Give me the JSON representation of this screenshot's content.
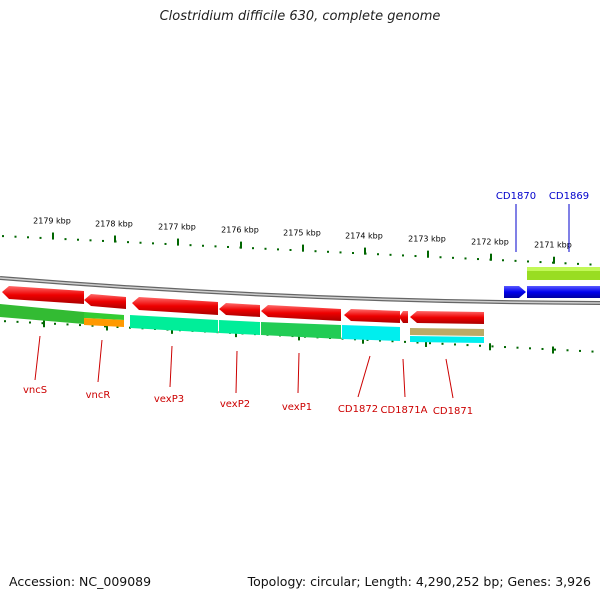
{
  "title": "Clostridium difficile 630, complete genome",
  "footer": {
    "accession_label": "Accession:",
    "accession": "NC_009089",
    "topology_label": "Topology:",
    "topology": "circular",
    "length_label": "Length:",
    "length": "4,290,252 bp",
    "genes_label": "Genes:",
    "genes": "3,926"
  },
  "colors": {
    "forward_label": "#0000cc",
    "reverse_label": "#cc0000",
    "tick": "#006600",
    "backbone": "#777777"
  },
  "scale": {
    "unit": "kbp",
    "labels": [
      "2179 kbp",
      "2178 kbp",
      "2177 kbp",
      "2176 kbp",
      "2175 kbp",
      "2174 kbp",
      "2173 kbp",
      "2172 kbp",
      "2171 kbp"
    ]
  },
  "forward_genes": [
    {
      "name": "CD1870",
      "color": "#0000ee"
    },
    {
      "name": "CD1869",
      "color": "#0000ee"
    }
  ],
  "reverse_genes": [
    {
      "name": "vncS",
      "color": "#ee0000"
    },
    {
      "name": "vncR",
      "color": "#ee0000"
    },
    {
      "name": "vexP3",
      "color": "#ee0000"
    },
    {
      "name": "vexP2",
      "color": "#ee0000"
    },
    {
      "name": "vexP1",
      "color": "#ee0000"
    },
    {
      "name": "CD1872",
      "color": "#ee0000"
    },
    {
      "name": "CD1871A",
      "color": "#ee0000"
    },
    {
      "name": "CD1871",
      "color": "#ee0000"
    }
  ],
  "function_bars": {
    "forward": [
      "#99dd22"
    ],
    "reverse": [
      "#33bb33",
      "#ff9900",
      "#00ee99",
      "#00ee99",
      "#22cc55",
      "#00eeee",
      "#bbaa66",
      "#00eeee"
    ]
  }
}
